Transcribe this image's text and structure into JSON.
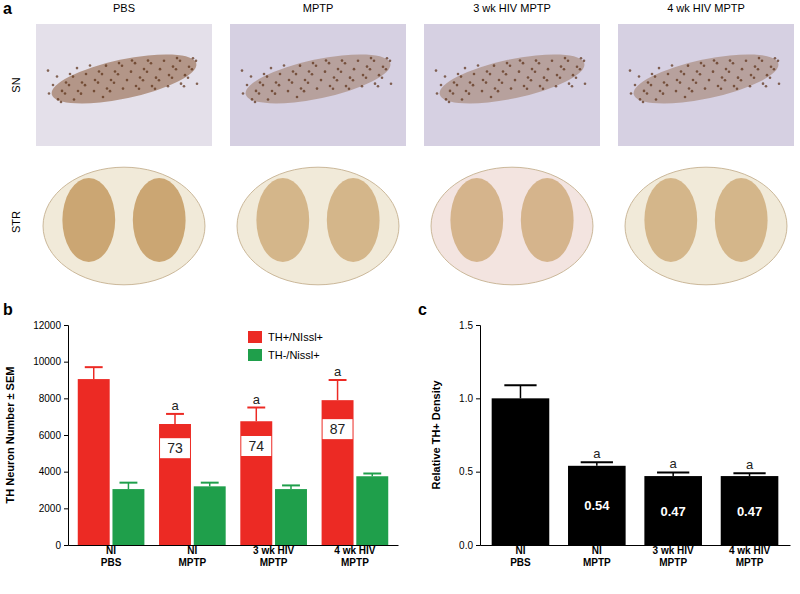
{
  "figure": {
    "panel_labels": [
      "a",
      "b",
      "c"
    ],
    "panel_a": {
      "columns": [
        "PBS",
        "MPTP",
        "3 wk HIV\nMPTP",
        "4 wk HIV\nMPTP"
      ],
      "rows": [
        "SN",
        "STR"
      ]
    }
  },
  "chart_data": [
    {
      "type": "bar",
      "y_label": "TH Neuron Number ± SEM",
      "categories": [
        "NI\nPBS",
        "NI\nMPTP",
        "3 wk HIV\nMPTP",
        "4 wk HIV\nMPTP"
      ],
      "series": [
        {
          "name": "TH+/NIssl+",
          "color": "#ec2a24",
          "values": [
            9050,
            6600,
            6750,
            7900
          ],
          "errors": [
            650,
            550,
            750,
            1100
          ]
        },
        {
          "name": "TH-/Nissl+",
          "color": "#1f9f4b",
          "values": [
            3050,
            3200,
            3050,
            3750
          ],
          "errors": [
            350,
            200,
            200,
            150
          ]
        }
      ],
      "ylim": [
        0,
        12000
      ],
      "yticks": [
        0,
        2000,
        4000,
        6000,
        8000,
        10000,
        12000
      ],
      "legend": "upper right",
      "annotations": {
        "percent": [
          null,
          73,
          74,
          87
        ],
        "significance": [
          null,
          "a",
          "a",
          "a"
        ]
      }
    },
    {
      "type": "bar",
      "y_label": "Relative TH+ Density",
      "categories": [
        "NI\nPBS",
        "NI\nMPTP",
        "3 wk HIV\nMPTP",
        "4 wk HIV\nMPTP"
      ],
      "values": [
        1.0,
        0.54,
        0.47,
        0.47
      ],
      "errors": [
        0.09,
        0.025,
        0.025,
        0.02
      ],
      "value_labels": [
        null,
        "0.54",
        "0.47",
        "0.47"
      ],
      "data_labels": true,
      "color": "#000000",
      "ylim": [
        0,
        1.5
      ],
      "yticks": [
        {
          "value": 0,
          "label": "0.0"
        },
        {
          "value": 0.5,
          "label": "0.5"
        },
        {
          "value": 1.0,
          "label": "1.0"
        },
        {
          "value": 1.5,
          "label": "1.5"
        }
      ],
      "annotations": {
        "significance": [
          null,
          "a",
          "a",
          "a"
        ]
      }
    }
  ]
}
